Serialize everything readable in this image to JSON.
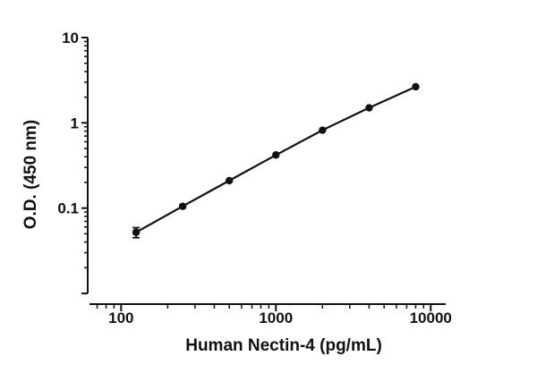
{
  "chart_data": {
    "type": "line",
    "xlabel": "Human Nectin-4 (pg/mL)",
    "ylabel": "O.D. (450 nm)",
    "x_scale": "log",
    "y_scale": "log",
    "xlim": [
      62.5,
      12500
    ],
    "ylim": [
      0.01,
      10
    ],
    "x_ticks": [
      100,
      1000,
      10000
    ],
    "x_tick_labels": [
      "100",
      "1000",
      "10000"
    ],
    "y_ticks": [
      0.1,
      1,
      10
    ],
    "y_tick_labels": [
      "0.1",
      "1",
      "10"
    ],
    "grid": false,
    "legend": "none",
    "series": [
      {
        "x": [
          125,
          250,
          500,
          1000,
          2000,
          4000,
          8000
        ],
        "y": [
          0.052,
          0.105,
          0.21,
          0.42,
          0.82,
          1.5,
          2.65
        ],
        "y_err": [
          0.007,
          0.004,
          0.005,
          0.01,
          0.02,
          0.03,
          0.04
        ]
      }
    ],
    "color": "#111111"
  }
}
